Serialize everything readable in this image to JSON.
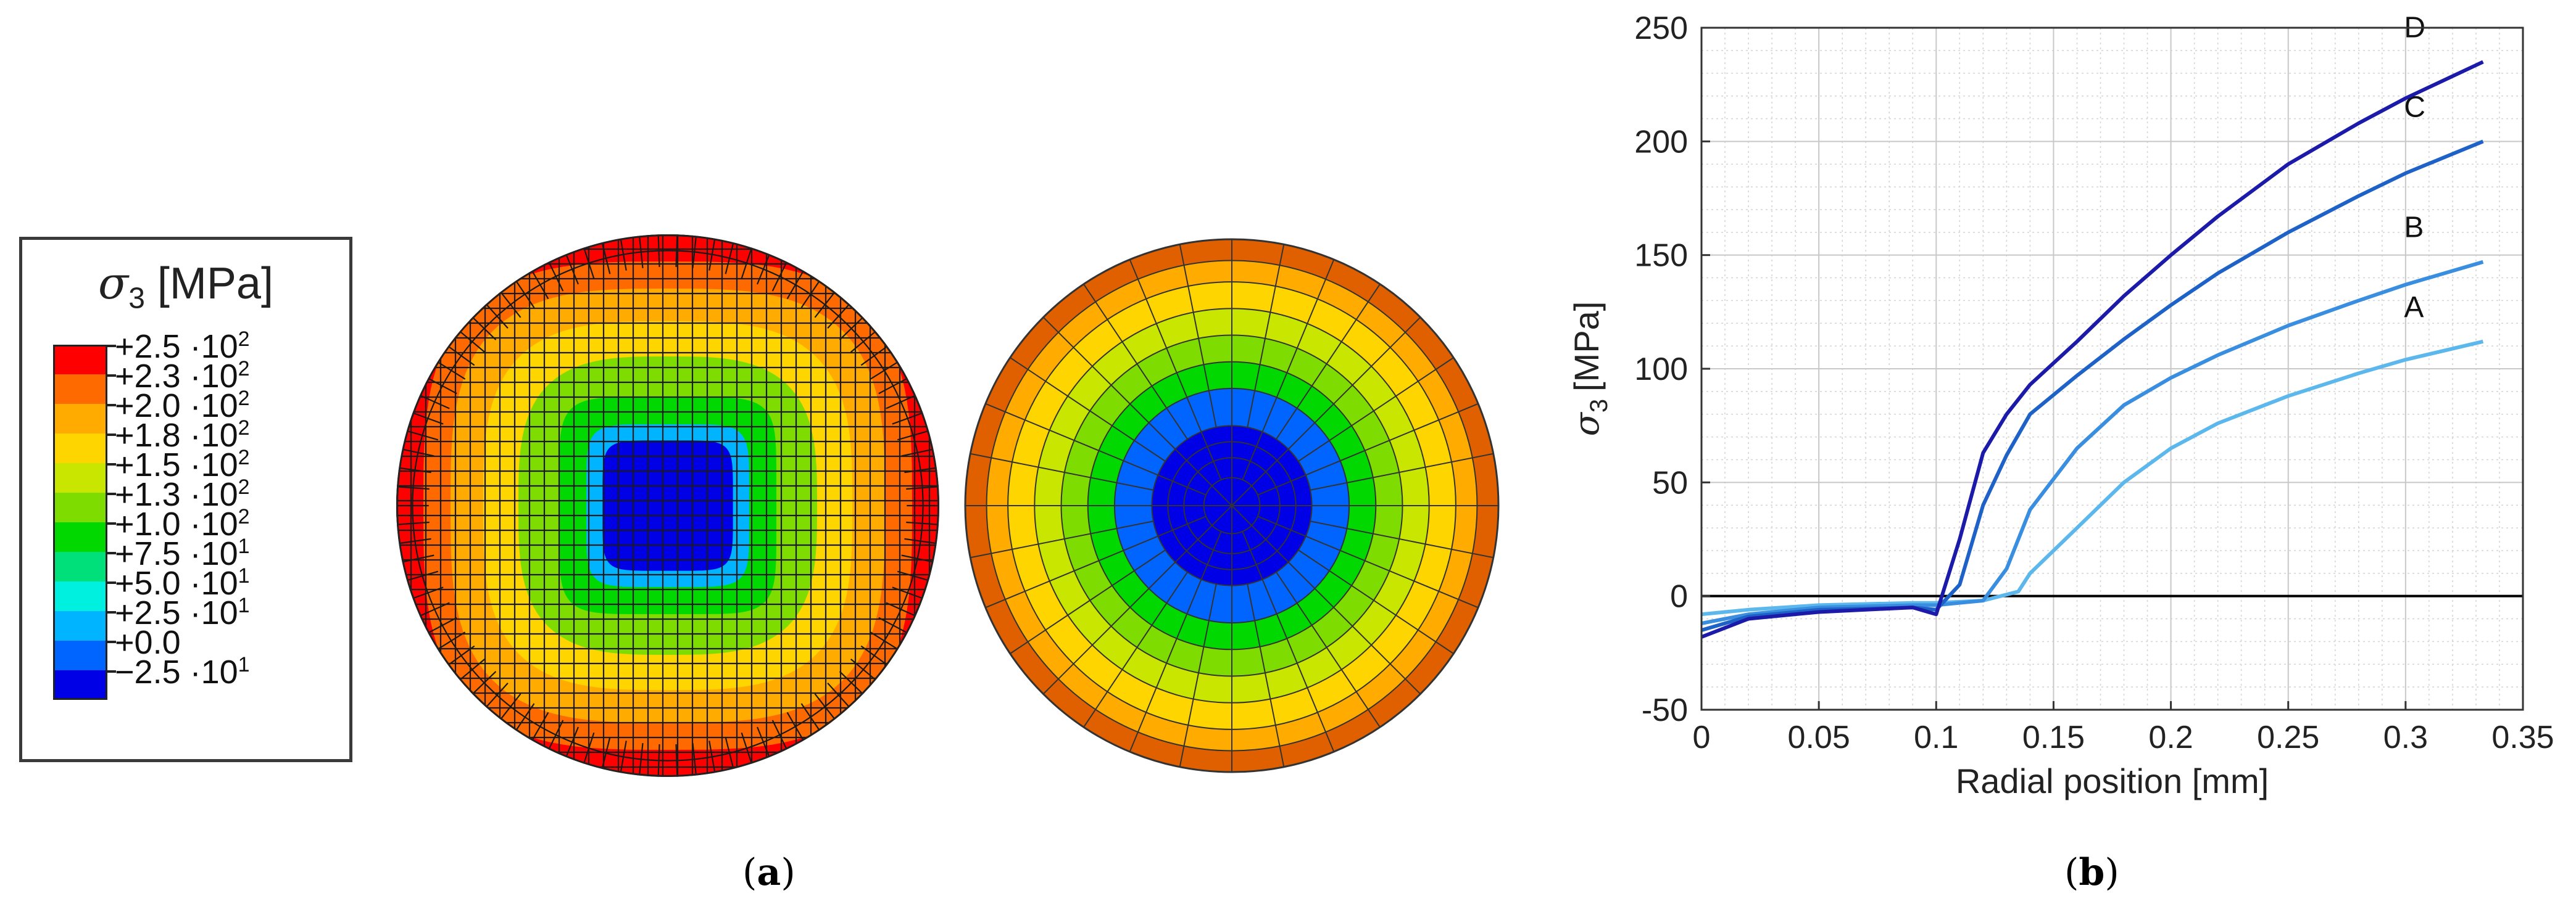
{
  "legend": {
    "symbol": "σ",
    "subscript": "3",
    "unit": "[MPa]",
    "entries": [
      {
        "mantissa": "+2.5 ·10",
        "exp": "2",
        "color": "#ff0000"
      },
      {
        "mantissa": "+2.3 ·10",
        "exp": "2",
        "color": "#ff6a00"
      },
      {
        "mantissa": "+2.0 ·10",
        "exp": "2",
        "color": "#ffab00"
      },
      {
        "mantissa": "+1.8 ·10",
        "exp": "2",
        "color": "#ffd500"
      },
      {
        "mantissa": "+1.5 ·10",
        "exp": "2",
        "color": "#c8e600"
      },
      {
        "mantissa": "+1.3 ·10",
        "exp": "2",
        "color": "#7fdc00"
      },
      {
        "mantissa": "+1.0 ·10",
        "exp": "2",
        "color": "#00d800"
      },
      {
        "mantissa": "+7.5 ·10",
        "exp": "1",
        "color": "#00e07a"
      },
      {
        "mantissa": "+5.0 ·10",
        "exp": "1",
        "color": "#00f0e0"
      },
      {
        "mantissa": "+2.5 ·10",
        "exp": "1",
        "color": "#00b4ff"
      },
      {
        "mantissa": "+0.0",
        "exp": "",
        "color": "#0064ff"
      },
      {
        "mantissa": "−2.5 ·10",
        "exp": "1",
        "color": "#0000e6"
      }
    ]
  },
  "mesh_fine": {
    "ring_colors": [
      "#0000e6",
      "#00b4ff",
      "#00d800",
      "#7fdc00",
      "#ffd500",
      "#ffab00",
      "#ff6a00",
      "#ff0000"
    ],
    "ring_fractions": [
      0.24,
      0.3,
      0.4,
      0.55,
      0.68,
      0.8,
      0.9,
      1.0
    ]
  },
  "mesh_coarse": {
    "ring_colors": [
      "#0000e6",
      "#0064ff",
      "#00d800",
      "#7fdc00",
      "#c8e600",
      "#ffd500",
      "#ffab00",
      "#e06000"
    ],
    "ring_fractions": [
      0.3,
      0.44,
      0.54,
      0.64,
      0.74,
      0.84,
      0.92,
      1.0
    ]
  },
  "chart_data": {
    "type": "line",
    "xlabel": "Radial position [mm]",
    "ylabel_symbol": "σ",
    "ylabel_sub": "3",
    "ylabel_unit": "[MPa]",
    "xlim": [
      0,
      0.35
    ],
    "ylim": [
      -50,
      250
    ],
    "xticks": [
      "0",
      "0.05",
      "0.1",
      "0.15",
      "0.2",
      "0.25",
      "0.3",
      "0.35"
    ],
    "yticks": [
      "-50",
      "0",
      "50",
      "100",
      "150",
      "200",
      "250"
    ],
    "grid": true,
    "series": [
      {
        "name": "A",
        "color": "#5cb8ec",
        "x": [
          0,
          0.02,
          0.05,
          0.09,
          0.1,
          0.12,
          0.135,
          0.14,
          0.16,
          0.18,
          0.2,
          0.22,
          0.25,
          0.28,
          0.3,
          0.333
        ],
        "y": [
          -8,
          -6,
          -4,
          -3,
          -3,
          -2,
          2,
          10,
          30,
          50,
          65,
          76,
          88,
          98,
          104,
          112
        ]
      },
      {
        "name": "B",
        "color": "#3a8ee0",
        "x": [
          0,
          0.02,
          0.05,
          0.09,
          0.1,
          0.11,
          0.12,
          0.13,
          0.14,
          0.16,
          0.18,
          0.2,
          0.22,
          0.25,
          0.28,
          0.3,
          0.333
        ],
        "y": [
          -12,
          -8,
          -5,
          -4,
          -4,
          -3,
          -2,
          12,
          38,
          65,
          84,
          96,
          106,
          119,
          130,
          137,
          147
        ]
      },
      {
        "name": "C",
        "color": "#1e62c8",
        "x": [
          0,
          0.02,
          0.05,
          0.09,
          0.1,
          0.11,
          0.12,
          0.13,
          0.14,
          0.16,
          0.18,
          0.2,
          0.22,
          0.25,
          0.28,
          0.3,
          0.333
        ],
        "y": [
          -15,
          -9,
          -6,
          -5,
          -6,
          5,
          40,
          62,
          80,
          97,
          113,
          128,
          142,
          160,
          176,
          186,
          200
        ]
      },
      {
        "name": "D",
        "color": "#1c1aa8",
        "x": [
          0,
          0.02,
          0.05,
          0.09,
          0.1,
          0.11,
          0.12,
          0.13,
          0.14,
          0.16,
          0.18,
          0.2,
          0.22,
          0.25,
          0.28,
          0.3,
          0.333
        ],
        "y": [
          -18,
          -10,
          -7,
          -5,
          -8,
          25,
          63,
          80,
          93,
          112,
          132,
          150,
          167,
          190,
          208,
          219,
          235
        ]
      }
    ]
  },
  "captions": {
    "a": "a",
    "b": "b"
  }
}
